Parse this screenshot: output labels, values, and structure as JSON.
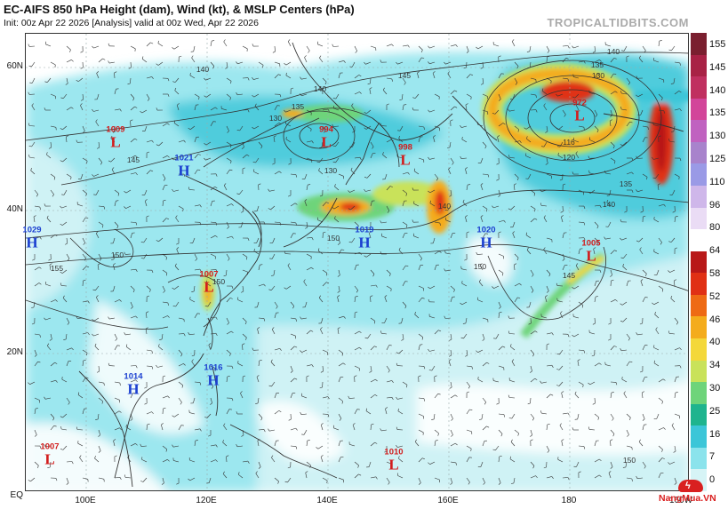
{
  "header": {
    "title": "EC-AIFS 850 hPa Height (dam), Wind (kt), & MSLP Centers (hPa)",
    "subtitle": "Init: 00z Apr 22 2026   [Analysis]   valid at 00z Wed, Apr 22 2026",
    "brand": "TROPICALTIDBITS.COM"
  },
  "axes": {
    "lat_labels": [
      "60N",
      "40N",
      "20N",
      "EQ"
    ],
    "lon_labels": [
      "100E",
      "120E",
      "140E",
      "160E",
      "180",
      "160W"
    ]
  },
  "colorbar": {
    "labels": [
      "155",
      "145",
      "140",
      "135",
      "130",
      "125",
      "110",
      "96",
      "80",
      "64",
      "58",
      "52",
      "46",
      "40",
      "34",
      "30",
      "25",
      "16",
      "7",
      "0"
    ],
    "colors": [
      "#7a1f2f",
      "#a82245",
      "#c03060",
      "#d2459a",
      "#c062c0",
      "#a883cc",
      "#9a9ae6",
      "#cfb7ea",
      "#eadcf5",
      "#ffffff",
      "#b81818",
      "#e03014",
      "#ee6a14",
      "#f4ac1c",
      "#f4d83a",
      "#c9e25a",
      "#6ed47a",
      "#1fb48e",
      "#3cc6d8",
      "#8be3ec",
      "#d6f4f6"
    ]
  },
  "pressure_centers": [
    {
      "type": "L",
      "value": "1009"
    },
    {
      "type": "H",
      "value": "1021"
    },
    {
      "type": "H",
      "value": "1029"
    },
    {
      "type": "L",
      "value": "994"
    },
    {
      "type": "L",
      "value": "998"
    },
    {
      "type": "L",
      "value": "972"
    },
    {
      "type": "H",
      "value": "1019"
    },
    {
      "type": "H",
      "value": "1020"
    },
    {
      "type": "L",
      "value": "1005"
    },
    {
      "type": "L",
      "value": "1007"
    },
    {
      "type": "H",
      "value": "1014"
    },
    {
      "type": "H",
      "value": "1016"
    },
    {
      "type": "L",
      "value": "1007"
    },
    {
      "type": "L",
      "value": "1010"
    }
  ],
  "contour_labels": [
    "140",
    "145",
    "140",
    "135",
    "130",
    "130",
    "135",
    "140",
    "145",
    "150",
    "150",
    "155",
    "150",
    "145",
    "150",
    "140",
    "120",
    "116",
    "135",
    "140",
    "130",
    "150"
  ],
  "watermark": {
    "text": "NangMua.VN"
  }
}
